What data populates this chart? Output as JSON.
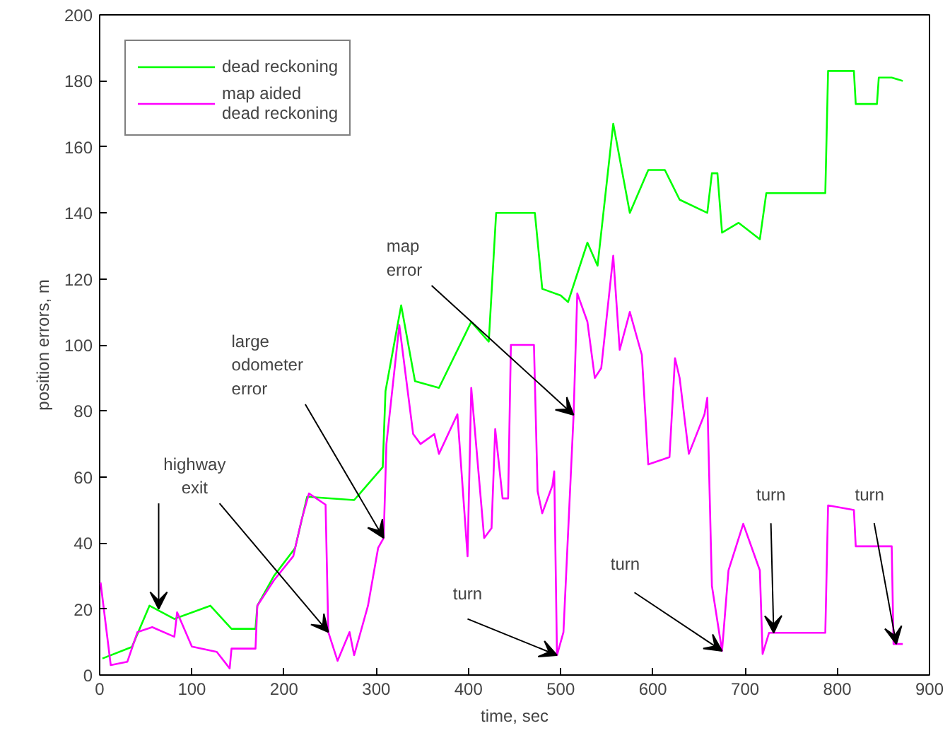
{
  "chart_data": {
    "type": "line",
    "xlabel": "time, sec",
    "ylabel": "position errors, m",
    "xlim": [
      0,
      900
    ],
    "ylim": [
      0,
      200
    ],
    "xticks": [
      0,
      100,
      200,
      300,
      400,
      500,
      600,
      700,
      800,
      900
    ],
    "yticks": [
      0,
      20,
      40,
      60,
      80,
      100,
      120,
      140,
      160,
      180,
      200
    ],
    "grid": false,
    "legend": "top left",
    "marker": "none",
    "line_style": "solid",
    "series": [
      {
        "name": "dead reckoning",
        "color": "#00ff00",
        "x": [
          3,
          35,
          54,
          81,
          120,
          143,
          169,
          171,
          189,
          212,
          225,
          276,
          307,
          310,
          327,
          342,
          368,
          403,
          422,
          430,
          472,
          480,
          500,
          508,
          529,
          540,
          557,
          575,
          595,
          613,
          629,
          659,
          664,
          670,
          675,
          693,
          716,
          723,
          787,
          790,
          818,
          820,
          843,
          845,
          859,
          871
        ],
        "values": [
          5,
          8.5,
          21,
          17,
          21,
          14,
          14,
          21,
          30,
          38.5,
          54,
          53,
          63,
          86,
          112,
          89,
          87,
          107,
          101,
          140,
          140,
          117,
          115,
          113,
          131,
          124,
          167,
          140,
          153,
          153,
          144,
          140,
          152,
          152,
          134,
          137,
          132,
          146,
          146,
          183,
          183,
          173,
          173,
          181,
          181,
          180
        ]
      },
      {
        "name": "map aided\ndead reckoning",
        "color": "#ff00ff",
        "x": [
          1,
          12,
          30,
          41,
          57,
          81,
          84,
          100,
          127,
          141,
          143,
          169,
          171,
          189,
          210,
          219,
          227,
          245,
          248,
          258,
          271,
          276,
          291,
          302,
          308,
          311,
          325,
          340,
          348,
          363,
          368,
          388,
          399,
          403,
          417,
          425,
          429,
          437,
          443,
          446,
          471,
          475,
          480,
          491,
          493,
          496,
          503,
          514,
          518,
          529,
          537,
          544,
          557,
          564,
          575,
          588,
          595,
          618,
          624,
          629,
          639,
          656,
          659,
          664,
          675,
          682,
          698,
          716,
          719,
          726,
          787,
          790,
          818,
          820,
          859,
          861,
          871
        ],
        "values": [
          28,
          3,
          4,
          13,
          14.5,
          11.6,
          19,
          8.6,
          7,
          2,
          8,
          8,
          21,
          28.7,
          36,
          47,
          55,
          51.6,
          13,
          4.3,
          13,
          6,
          21,
          38.5,
          41.5,
          70,
          106,
          73,
          70,
          73,
          67,
          79,
          36,
          87,
          41.5,
          44.5,
          74.5,
          53.5,
          53.5,
          100,
          100,
          55.7,
          49,
          57.4,
          61.7,
          6,
          13,
          78.8,
          115.6,
          107,
          90,
          93,
          127,
          98.5,
          110,
          97,
          63.8,
          66,
          96,
          90,
          67,
          79,
          84,
          27,
          7.3,
          31.7,
          45.8,
          31.7,
          6.4,
          12.8,
          12.8,
          51.4,
          50,
          39,
          39,
          9.4,
          9.4
        ]
      }
    ],
    "annotations": [
      {
        "text": "highway\nexit",
        "x": 248,
        "y": 13
      },
      {
        "text": "large\nodometer\nerror",
        "x": 308,
        "y": 41.5
      },
      {
        "text": "map\nerror",
        "x": 514,
        "y": 78.8
      },
      {
        "text": "turn",
        "x": 496,
        "y": 6
      },
      {
        "text": "turn",
        "x": 675,
        "y": 7.3
      },
      {
        "text": "turn",
        "x": 731,
        "y": 12.8
      },
      {
        "text": "turn",
        "x": 864,
        "y": 9.4
      }
    ]
  }
}
